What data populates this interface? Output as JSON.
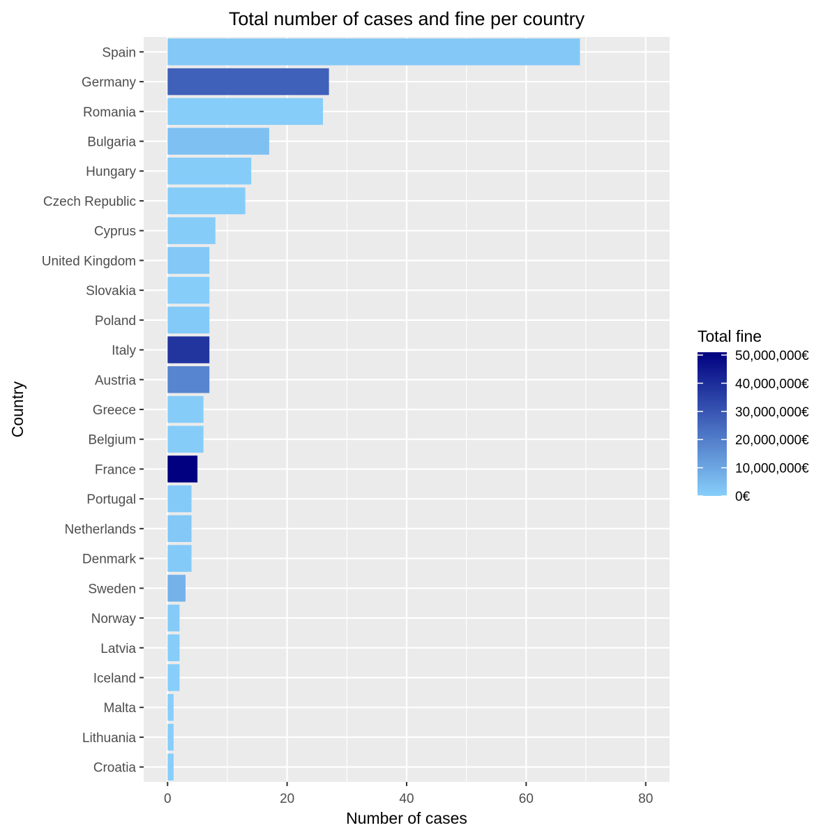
{
  "chart_data": {
    "type": "bar",
    "orientation": "horizontal",
    "title": "Total number of cases and fine per country",
    "xlabel": "Number of cases",
    "ylabel": "Country",
    "xlim": [
      -4,
      84
    ],
    "x_ticks": [
      0,
      20,
      40,
      60,
      80
    ],
    "x_tick_labels": [
      "0",
      "20",
      "40",
      "60",
      "80"
    ],
    "grid": true,
    "legend": {
      "title": "Total fine",
      "placement": "right",
      "type": "continuous",
      "min": 0,
      "max": 51000000,
      "ticks": [
        0,
        10000000,
        20000000,
        30000000,
        40000000,
        50000000
      ],
      "tick_labels": [
        "0€",
        "10,000,000€",
        "20,000,000€",
        "30,000,000€",
        "40,000,000€",
        "50,000,000€"
      ],
      "low_color": "#87CEFA",
      "high_color": "#000080"
    },
    "colors": {
      "panel_background": "#ebebeb",
      "gridline": "#ffffff",
      "tick_mark": "#333333"
    },
    "bars": [
      {
        "category": "Spain",
        "cases": 69,
        "fine": 1500000
      },
      {
        "category": "Germany",
        "cases": 27,
        "fine": 27000000
      },
      {
        "category": "Romania",
        "cases": 26,
        "fine": 300000
      },
      {
        "category": "Bulgaria",
        "cases": 17,
        "fine": 3500000
      },
      {
        "category": "Hungary",
        "cases": 14,
        "fine": 500000
      },
      {
        "category": "Czech Republic",
        "cases": 13,
        "fine": 400000
      },
      {
        "category": "Cyprus",
        "cases": 8,
        "fine": 500000
      },
      {
        "category": "United Kingdom",
        "cases": 7,
        "fine": 1500000
      },
      {
        "category": "Slovakia",
        "cases": 7,
        "fine": 200000
      },
      {
        "category": "Poland",
        "cases": 7,
        "fine": 1000000
      },
      {
        "category": "Italy",
        "cases": 7,
        "fine": 38000000
      },
      {
        "category": "Austria",
        "cases": 7,
        "fine": 18000000
      },
      {
        "category": "Greece",
        "cases": 6,
        "fine": 500000
      },
      {
        "category": "Belgium",
        "cases": 6,
        "fine": 400000
      },
      {
        "category": "France",
        "cases": 5,
        "fine": 51000000
      },
      {
        "category": "Portugal",
        "cases": 4,
        "fine": 1000000
      },
      {
        "category": "Netherlands",
        "cases": 4,
        "fine": 1500000
      },
      {
        "category": "Denmark",
        "cases": 4,
        "fine": 1000000
      },
      {
        "category": "Sweden",
        "cases": 3,
        "fine": 7000000
      },
      {
        "category": "Norway",
        "cases": 2,
        "fine": 800000
      },
      {
        "category": "Latvia",
        "cases": 2,
        "fine": 300000
      },
      {
        "category": "Iceland",
        "cases": 2,
        "fine": 100000
      },
      {
        "category": "Malta",
        "cases": 1,
        "fine": 15000
      },
      {
        "category": "Lithuania",
        "cases": 1,
        "fine": 100000
      },
      {
        "category": "Croatia",
        "cases": 1,
        "fine": 50000
      }
    ]
  }
}
